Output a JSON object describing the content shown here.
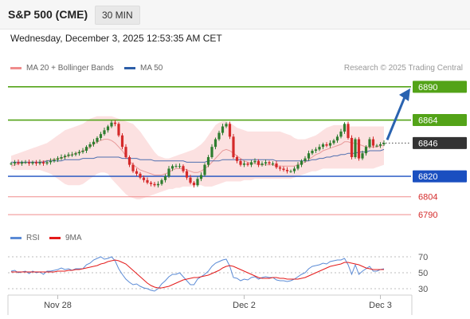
{
  "header": {
    "instrument": "S&P 500 (CME)",
    "timeframe": "30 MIN",
    "timestamp": "Wednesday, December 3, 2025 12:53:35 AM CET"
  },
  "legend": [
    {
      "label": "MA 20 + Bollinger Bands",
      "color": "#f08c8c"
    },
    {
      "label": "MA 50",
      "color": "#2d5ea8"
    }
  ],
  "copyright": "Research © 2025 Trading Central",
  "rsi_legend": [
    {
      "label": "RSI",
      "color": "#5b8bd6"
    },
    {
      "label": "9MA",
      "color": "#e41a1a"
    }
  ],
  "colors": {
    "up": "#2f7d2f",
    "down": "#d42a2a",
    "resistance": "#53a318",
    "pivot": "#1a4fc0",
    "support": "#f08c8c",
    "current": "#333333",
    "arrow": "#2a63b0"
  },
  "chart_data": [
    {
      "type": "candlestick",
      "ylim": [
        6782,
        6898
      ],
      "x_tick_labels": [
        "Nov 28",
        "Dec 2",
        "Dec 3"
      ],
      "levels": [
        {
          "value": 6890,
          "label": "6890",
          "kind": "resistance"
        },
        {
          "value": 6864,
          "label": "6864",
          "kind": "resistance"
        },
        {
          "value": 6846,
          "label": "6846",
          "kind": "current"
        },
        {
          "value": 6820,
          "label": "6820",
          "kind": "pivot"
        },
        {
          "value": 6804,
          "label": "6804",
          "kind": "support"
        },
        {
          "value": 6790,
          "label": "6790",
          "kind": "support"
        }
      ],
      "close": [
        6830,
        6831,
        6830,
        6831,
        6831,
        6830,
        6831,
        6830,
        6831,
        6830,
        6831,
        6832,
        6833,
        6834,
        6835,
        6836,
        6837,
        6837,
        6838,
        6839,
        6840,
        6843,
        6845,
        6847,
        6850,
        6853,
        6856,
        6859,
        6862,
        6861,
        6852,
        6843,
        6835,
        6829,
        6824,
        6822,
        6819,
        6817,
        6815,
        6814,
        6813,
        6814,
        6817,
        6820,
        6826,
        6828,
        6828,
        6828,
        6824,
        6819,
        6815,
        6813,
        6818,
        6821,
        6829,
        6835,
        6843,
        6849,
        6854,
        6859,
        6861,
        6851,
        6835,
        6832,
        6829,
        6830,
        6829,
        6831,
        6832,
        6829,
        6830,
        6831,
        6830,
        6830,
        6827,
        6826,
        6825,
        6824,
        6824,
        6826,
        6829,
        6832,
        6834,
        6838,
        6840,
        6841,
        6843,
        6845,
        6844,
        6846,
        6848,
        6851,
        6855,
        6861,
        6850,
        6835,
        6849,
        6834,
        6838,
        6843,
        6849,
        6844,
        6844,
        6845,
        6846
      ],
      "ma20": [
        6828,
        6829,
        6830,
        6830,
        6831,
        6831,
        6831,
        6831,
        6831,
        6832,
        6832,
        6833,
        6833,
        6834,
        6834,
        6835,
        6836,
        6837,
        6838,
        6839,
        6840,
        6841,
        6843,
        6845,
        6847,
        6848,
        6849,
        6849,
        6848,
        6846,
        6843,
        6840,
        6836,
        6832,
        6829,
        6827,
        6825,
        6824,
        6823,
        6822,
        6821,
        6821,
        6821,
        6822,
        6823,
        6825,
        6826,
        6826,
        6826,
        6825,
        6824,
        6823,
        6823,
        6824,
        6826,
        6828,
        6831,
        6834,
        6837,
        6840,
        6841,
        6840,
        6838,
        6836,
        6834,
        6832,
        6831,
        6830,
        6830,
        6829,
        6829,
        6829,
        6829,
        6829,
        6828,
        6828,
        6828,
        6828,
        6828,
        6828,
        6829,
        6830,
        6831,
        6833,
        6835,
        6837,
        6838,
        6840,
        6841,
        6842,
        6843,
        6844,
        6845,
        6847,
        6847,
        6846,
        6846,
        6845,
        6844,
        6843,
        6843,
        6843,
        6843,
        6844,
        6844
      ],
      "ma50": [
        6831,
        6831,
        6831,
        6831,
        6831,
        6831,
        6831,
        6831,
        6831,
        6831,
        6832,
        6832,
        6832,
        6832,
        6832,
        6833,
        6833,
        6833,
        6833,
        6833,
        6834,
        6834,
        6834,
        6834,
        6835,
        6835,
        6835,
        6835,
        6835,
        6835,
        6835,
        6834,
        6834,
        6834,
        6834,
        6834,
        6833,
        6833,
        6833,
        6833,
        6832,
        6832,
        6832,
        6832,
        6832,
        6832,
        6832,
        6832,
        6832,
        6831,
        6831,
        6831,
        6831,
        6831,
        6831,
        6832,
        6832,
        6832,
        6832,
        6833,
        6833,
        6833,
        6833,
        6833,
        6833,
        6833,
        6833,
        6833,
        6833,
        6833,
        6833,
        6833,
        6833,
        6833,
        6832,
        6832,
        6832,
        6832,
        6832,
        6832,
        6832,
        6832,
        6832,
        6832,
        6833,
        6833,
        6834,
        6834,
        6835,
        6835,
        6836,
        6836,
        6837,
        6837,
        6838,
        6838,
        6838,
        6839,
        6839,
        6839,
        6840,
        6840,
        6840,
        6840,
        6841
      ],
      "bb_upper": [
        6836,
        6837,
        6838,
        6839,
        6840,
        6841,
        6842,
        6843,
        6844,
        6845,
        6846,
        6848,
        6850,
        6852,
        6854,
        6856,
        6857,
        6858,
        6859,
        6860,
        6861,
        6863,
        6865,
        6866,
        6867,
        6867,
        6867,
        6867,
        6867,
        6866,
        6865,
        6864,
        6863,
        6862,
        6861,
        6858,
        6855,
        6851,
        6847,
        6843,
        6839,
        6836,
        6835,
        6834,
        6834,
        6835,
        6836,
        6837,
        6838,
        6839,
        6840,
        6841,
        6843,
        6845,
        6848,
        6852,
        6856,
        6860,
        6862,
        6863,
        6863,
        6862,
        6860,
        6858,
        6857,
        6856,
        6855,
        6855,
        6855,
        6855,
        6855,
        6855,
        6855,
        6855,
        6855,
        6855,
        6854,
        6853,
        6852,
        6850,
        6849,
        6849,
        6849,
        6850,
        6851,
        6852,
        6854,
        6856,
        6858,
        6859,
        6860,
        6860,
        6860,
        6860,
        6859,
        6859,
        6859,
        6859,
        6859,
        6859,
        6859,
        6859,
        6859,
        6859,
        6859
      ],
      "bb_lower": [
        6826,
        6825,
        6825,
        6825,
        6825,
        6825,
        6825,
        6825,
        6825,
        6824,
        6823,
        6822,
        6820,
        6818,
        6816,
        6814,
        6813,
        6813,
        6813,
        6813,
        6814,
        6816,
        6818,
        6820,
        6822,
        6823,
        6823,
        6822,
        6818,
        6815,
        6812,
        6809,
        6806,
        6804,
        6803,
        6802,
        6802,
        6803,
        6804,
        6805,
        6806,
        6807,
        6808,
        6809,
        6810,
        6810,
        6811,
        6811,
        6812,
        6812,
        6812,
        6813,
        6813,
        6813,
        6812,
        6812,
        6812,
        6813,
        6814,
        6815,
        6816,
        6816,
        6816,
        6816,
        6816,
        6817,
        6817,
        6817,
        6818,
        6818,
        6818,
        6818,
        6818,
        6818,
        6818,
        6818,
        6818,
        6818,
        6818,
        6819,
        6820,
        6821,
        6822,
        6823,
        6824,
        6824,
        6825,
        6826,
        6826,
        6826,
        6826,
        6826,
        6826,
        6826,
        6826,
        6826,
        6826,
        6826,
        6826,
        6826,
        6826,
        6826,
        6827,
        6828,
        6829
      ]
    },
    {
      "type": "line",
      "ylim": [
        24,
        80
      ],
      "y_ticks": [
        70,
        50,
        30
      ],
      "series": [
        {
          "name": "RSI",
          "values": [
            52,
            53,
            50,
            51,
            52,
            49,
            52,
            50,
            51,
            48,
            52,
            52,
            53,
            54,
            56,
            54,
            55,
            53,
            55,
            55,
            55,
            60,
            62,
            66,
            68,
            70,
            67,
            68,
            70,
            65,
            55,
            48,
            42,
            38,
            35,
            36,
            33,
            31,
            30,
            28,
            27,
            30,
            36,
            40,
            45,
            48,
            48,
            50,
            45,
            40,
            35,
            35,
            42,
            45,
            48,
            52,
            58,
            62,
            64,
            66,
            67,
            58,
            44,
            43,
            40,
            42,
            41,
            44,
            45,
            42,
            44,
            45,
            44,
            44,
            41,
            40,
            40,
            39,
            40,
            42,
            45,
            48,
            50,
            55,
            58,
            59,
            60,
            62,
            61,
            64,
            65,
            66,
            66,
            68,
            60,
            48,
            60,
            48,
            52,
            55,
            58,
            52,
            52,
            54,
            55
          ]
        },
        {
          "name": "9MA",
          "values": [
            51,
            51,
            51,
            51,
            51,
            51,
            51,
            51,
            51,
            51,
            51,
            51,
            51,
            52,
            52,
            52,
            53,
            53,
            54,
            54,
            55,
            56,
            57,
            58,
            59,
            61,
            62,
            64,
            65,
            66,
            65,
            63,
            61,
            57,
            53,
            49,
            45,
            41,
            37,
            34,
            32,
            31,
            31,
            32,
            33,
            35,
            37,
            39,
            41,
            42,
            43,
            44,
            44,
            45,
            46,
            47,
            49,
            51,
            53,
            56,
            58,
            59,
            58,
            56,
            54,
            52,
            50,
            48,
            46,
            44,
            43,
            43,
            43,
            44,
            44,
            43,
            43,
            42,
            42,
            42,
            42,
            43,
            44,
            46,
            48,
            50,
            52,
            54,
            56,
            58,
            59,
            60,
            61,
            63,
            63,
            62,
            61,
            60,
            58,
            56,
            55,
            54,
            54,
            54,
            54
          ]
        }
      ]
    }
  ]
}
